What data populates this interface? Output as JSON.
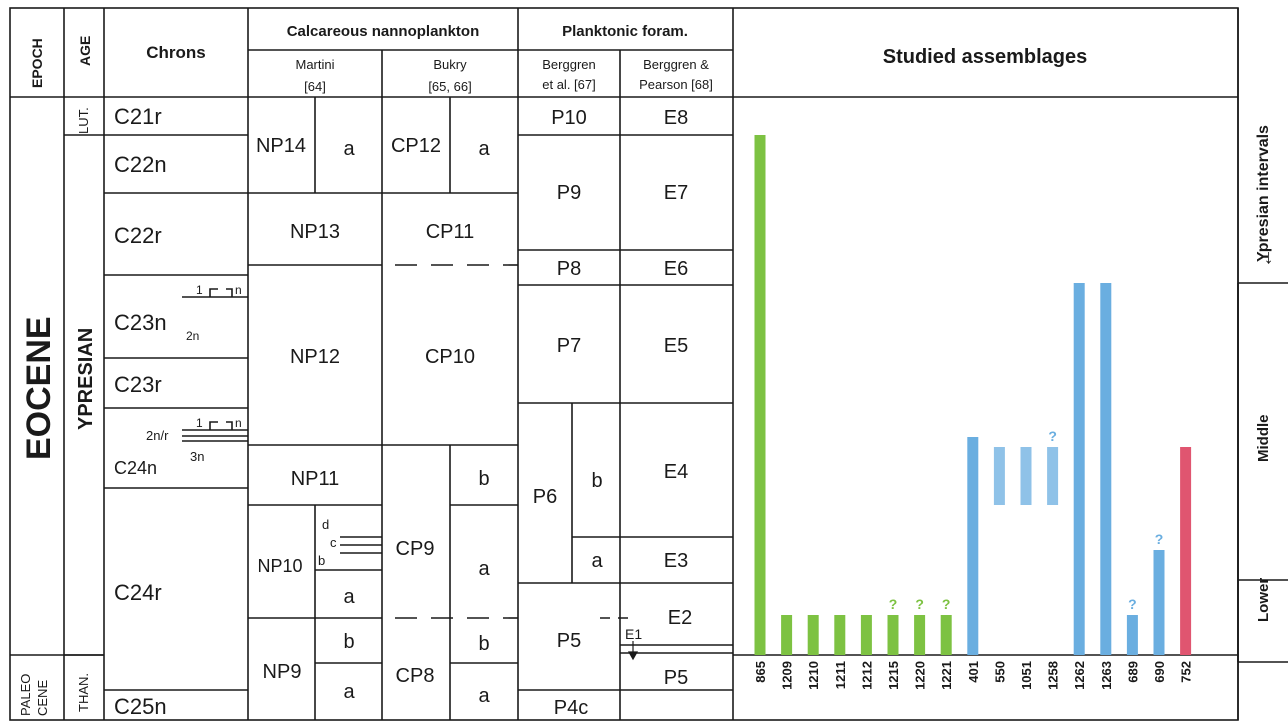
{
  "headers": {
    "epoch": "EPOCH",
    "age": "AGE",
    "chrons": "Chrons",
    "nanno": "Calcareous nannoplankton",
    "martini": [
      "Martini",
      "[64]"
    ],
    "bukry": [
      "Bukry",
      "[65, 66]"
    ],
    "foram": "Planktonic foram.",
    "berggren1": [
      "Berggren",
      "et al. [67]"
    ],
    "berggren2": [
      "Berggren &",
      "Pearson [68]"
    ],
    "studied": "Studied assemblages",
    "intervals": "Ypresian intervals",
    "arrow": "←"
  },
  "epochs": {
    "eocene": "EOCENE",
    "paleocene": [
      "PALEO",
      "CENE"
    ]
  },
  "ages": {
    "lut": "LUT.",
    "ypresian": "YPRESIAN",
    "than": "THAN."
  },
  "chrons": [
    "C21r",
    "C22n",
    "C22r",
    "C23n",
    "C23r",
    "C24n",
    "C24r",
    "C25n"
  ],
  "chron_subs": {
    "c23n_top": "1",
    "c23n_top2": "n",
    "c23n_2n": "2n",
    "c24n_1": "1",
    "c24n_1n": "n",
    "c24n_2nr": "2n/r",
    "c24n_3n": "3n"
  },
  "martini_zones": [
    "NP14",
    "a",
    "NP13",
    "NP12",
    "NP11",
    "NP10",
    "d",
    "c",
    "b",
    "a",
    "NP9",
    "b",
    "a"
  ],
  "bukry_zones": [
    "CP12",
    "a",
    "CP11",
    "CP10",
    "CP9",
    "b",
    "a",
    "CP8",
    "b",
    "a"
  ],
  "p_zones": [
    "P10",
    "P9",
    "P8",
    "P7",
    "P6",
    "b",
    "a",
    "P5",
    "P4c"
  ],
  "e_zones": [
    "E8",
    "E7",
    "E6",
    "E5",
    "E4",
    "E3",
    "E2",
    "E1",
    "P5"
  ],
  "intervals": [
    "Middle",
    "Lower"
  ],
  "chart_data": {
    "type": "bar",
    "categories": [
      "865",
      "1209",
      "1210",
      "1211",
      "1212",
      "1215",
      "1220",
      "1221",
      "401",
      "550",
      "1051",
      "1258",
      "1262",
      "1263",
      "689",
      "690",
      "752"
    ],
    "series": [
      {
        "color": "#7dc242",
        "bars": [
          {
            "top": "NP14a",
            "bottom": "base"
          },
          {
            "top": "NP10a",
            "bottom": "base"
          },
          {
            "top": "NP10a",
            "bottom": "base"
          },
          {
            "top": "NP10a",
            "bottom": "base"
          },
          {
            "top": "NP10a",
            "bottom": "base"
          },
          {
            "top": "NP10a",
            "bottom": "base",
            "uncertain_top": true
          },
          {
            "top": "NP10a",
            "bottom": "base",
            "uncertain_top": true
          },
          {
            "top": "NP10a",
            "bottom": "base",
            "uncertain_top": true
          }
        ]
      },
      {
        "color": "#6aaee0",
        "bars": [
          {
            "top": "NP12/NP11",
            "bottom": "base"
          },
          {
            "top": "NP11",
            "bottom": "NP11",
            "faded": true
          },
          {
            "top": "NP11",
            "bottom": "NP11",
            "faded": true
          },
          {
            "top": "NP11",
            "bottom": "NP11",
            "faded": true,
            "uncertain_top": true
          },
          {
            "top": "NP12",
            "bottom": "base"
          },
          {
            "top": "NP12",
            "bottom": "base"
          },
          {
            "top": "NP10a",
            "bottom": "base",
            "uncertain_top": true
          },
          {
            "top": "NP10c",
            "bottom": "base",
            "uncertain_top": true
          }
        ]
      },
      {
        "color": "#e05570",
        "bars": [
          {
            "top": "NP11",
            "bottom": "base"
          }
        ]
      }
    ],
    "uncertain_mark": "?"
  }
}
